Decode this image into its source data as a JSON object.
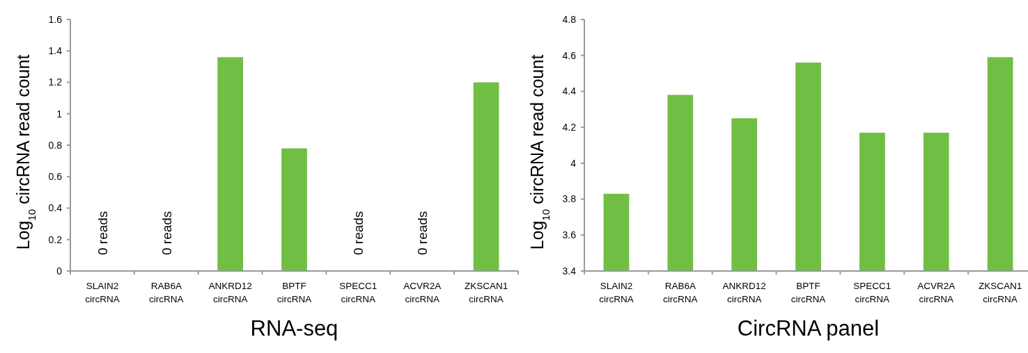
{
  "chart_data": [
    {
      "type": "bar",
      "title": "RNA-seq",
      "ylabel": "Log$_{10}$ circRNA read count",
      "categories": [
        "SLAIN2 circRNA",
        "RAB6A circRNA",
        "ANKRD12 circRNA",
        "BPTF circRNA",
        "SPECC1 circRNA",
        "ACVR2A circRNA",
        "ZKSCAN1 circRNA"
      ],
      "values": [
        0,
        0,
        1.36,
        0.78,
        0,
        0,
        1.2
      ],
      "color": "#70bf44",
      "ylim": [
        0,
        1.6
      ],
      "yticks": [
        0,
        0.2,
        0.4,
        0.6,
        0.8,
        1,
        1.2,
        1.4,
        1.6
      ],
      "grid": false,
      "annotations": [
        {
          "text": "0 reads",
          "x": "SLAIN2 circRNA",
          "y": 0
        },
        {
          "text": "0 reads",
          "x": "RAB6A circRNA",
          "y": 0
        },
        {
          "text": "0 reads",
          "x": "SPECC1 circRNA",
          "y": 0
        },
        {
          "text": "0 reads",
          "x": "ACVR2A circRNA",
          "y": 0
        }
      ]
    },
    {
      "type": "bar",
      "title": "CircRNA panel",
      "ylabel": "Log$_{10}$ circRNA read count",
      "categories": [
        "SLAIN2 circRNA",
        "RAB6A circRNA",
        "ANKRD12 circRNA",
        "BPTF circRNA",
        "SPECC1 circRNA",
        "ACVR2A circRNA",
        "ZKSCAN1 circRNA"
      ],
      "values": [
        3.83,
        4.38,
        4.25,
        4.56,
        4.17,
        4.17,
        4.59
      ],
      "color": "#70bf44",
      "ylim": [
        3.4,
        4.8
      ],
      "yticks": [
        3.4,
        3.6,
        3.8,
        4,
        4.2,
        4.4,
        4.6,
        4.8
      ],
      "grid": false
    }
  ]
}
